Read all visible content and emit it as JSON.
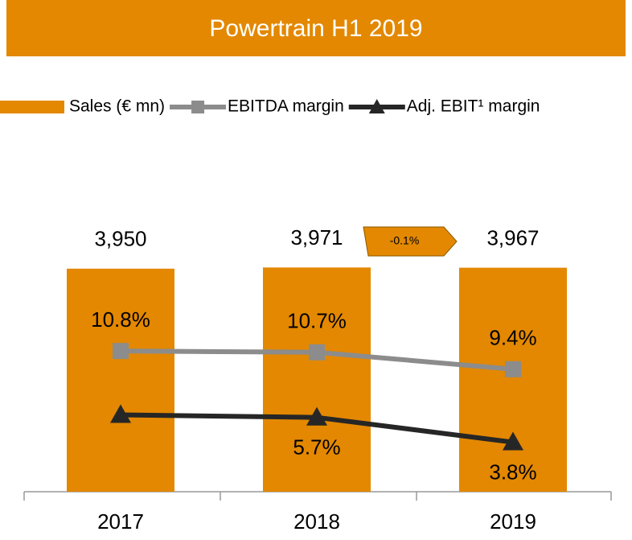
{
  "chart_data": {
    "type": "bar",
    "title": "Powertrain H1 2019",
    "categories": [
      "2017",
      "2018",
      "2019"
    ],
    "series": [
      {
        "name": "Sales (€ mn)",
        "type": "bar",
        "color": "#e38800",
        "values": [
          3950,
          3971,
          3967
        ],
        "value_labels": [
          "3,950",
          "3,971",
          "3,967"
        ]
      },
      {
        "name": "EBITDA margin",
        "type": "line",
        "axis": "y2",
        "marker": "square",
        "color": "#8c8c8c",
        "values": [
          10.8,
          10.7,
          9.4
        ],
        "value_labels": [
          "10.8%",
          "10.7%",
          "9.4%"
        ]
      },
      {
        "name": "Adj. EBIT¹ margin",
        "type": "line",
        "axis": "y2",
        "marker": "triangle",
        "color": "#262626",
        "values": [
          5.9,
          5.7,
          3.8
        ],
        "value_labels": [
          null,
          "5.7%",
          "3.8%"
        ]
      }
    ],
    "annotations": [
      {
        "text": "-0.1%"
      }
    ],
    "ylim": [
      0,
      6000
    ],
    "y2lim": [
      0,
      26
    ],
    "legend": "top"
  }
}
